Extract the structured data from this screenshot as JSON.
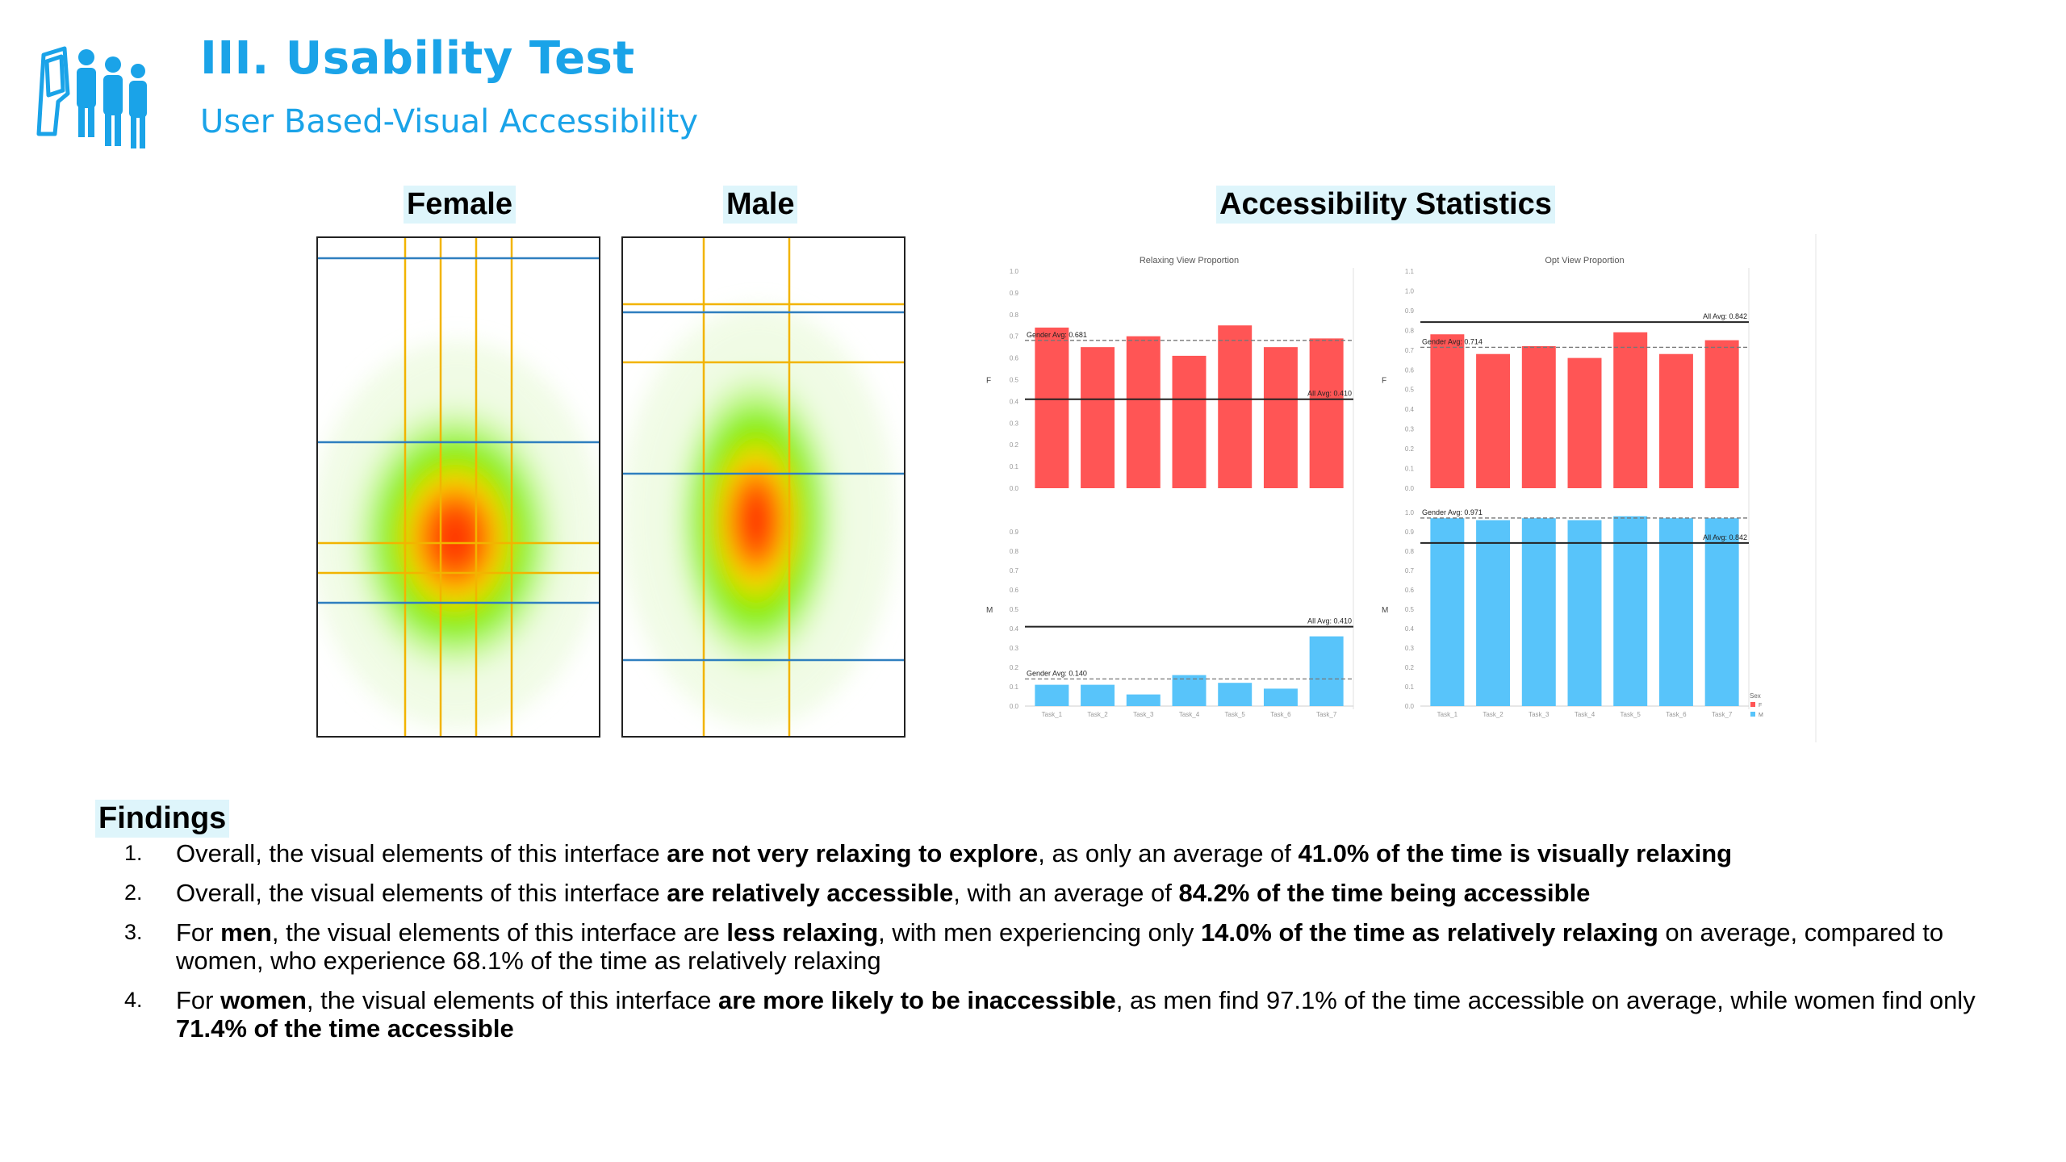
{
  "header": {
    "title": "III. Usability Test",
    "subtitle": "User Based-Visual Accessibility",
    "icon": "kiosk-users-icon"
  },
  "labels": {
    "female": "Female",
    "male": "Male",
    "stats": "Accessibility Statistics",
    "findings": "Findings"
  },
  "colors": {
    "accent": "#1aa3e8",
    "female_bar": "#ff5555",
    "male_bar": "#58c4fa",
    "highlight": "#def5fb"
  },
  "chart_data": [
    {
      "type": "bar",
      "title": "Relaxing View Proportion",
      "categories": [
        "Task_1",
        "Task_2",
        "Task_3",
        "Task_4",
        "Task_5",
        "Task_6",
        "Task_7"
      ],
      "row_labels": [
        "F",
        "M"
      ],
      "series": [
        {
          "name": "F",
          "values": [
            0.74,
            0.65,
            0.7,
            0.61,
            0.75,
            0.65,
            0.69
          ]
        },
        {
          "name": "M",
          "values": [
            0.11,
            0.11,
            0.06,
            0.16,
            0.12,
            0.09,
            0.36
          ]
        }
      ],
      "ylim_f": [
        0,
        1.0
      ],
      "ylim_m": [
        0,
        1.0
      ],
      "yticks_f": [
        "0.0",
        "0.1",
        "0.2",
        "0.3",
        "0.4",
        "0.5",
        "0.6",
        "0.7",
        "0.8",
        "0.9",
        "1.0"
      ],
      "yticks_m": [
        "0.0",
        "0.1",
        "0.2",
        "0.3",
        "0.4",
        "0.5",
        "0.6",
        "0.7",
        "0.8",
        "0.9"
      ],
      "f_gender_avg": 0.681,
      "f_gender_avg_label": "Gender Avg: 0.681",
      "f_all_avg": 0.41,
      "f_all_avg_label": "All Avg: 0.410",
      "m_gender_avg": 0.14,
      "m_gender_avg_label": "Gender Avg: 0.140",
      "m_all_avg": 0.41,
      "m_all_avg_label": "All Avg: 0.410"
    },
    {
      "type": "bar",
      "title": "Opt View Proportion",
      "categories": [
        "Task_1",
        "Task_2",
        "Task_3",
        "Task_4",
        "Task_5",
        "Task_6",
        "Task_7"
      ],
      "row_labels": [
        "F",
        "M"
      ],
      "series": [
        {
          "name": "F",
          "values": [
            0.78,
            0.68,
            0.72,
            0.66,
            0.79,
            0.68,
            0.75
          ]
        },
        {
          "name": "M",
          "values": [
            0.97,
            0.96,
            0.97,
            0.96,
            0.98,
            0.97,
            0.97
          ]
        }
      ],
      "ylim_f": [
        0,
        1.1
      ],
      "ylim_m": [
        0,
        1.0
      ],
      "yticks_f": [
        "0.0",
        "0.1",
        "0.2",
        "0.3",
        "0.4",
        "0.5",
        "0.6",
        "0.7",
        "0.8",
        "0.9",
        "1.0",
        "1.1"
      ],
      "yticks_m": [
        "0.0",
        "0.1",
        "0.2",
        "0.3",
        "0.4",
        "0.5",
        "0.6",
        "0.7",
        "0.8",
        "0.9",
        "1.0"
      ],
      "f_gender_avg": 0.714,
      "f_gender_avg_label": "Gender Avg: 0.714",
      "f_all_avg": 0.842,
      "f_all_avg_label": "All Avg: 0.842",
      "m_gender_avg": 0.971,
      "m_gender_avg_label": "Gender Avg: 0.971",
      "m_all_avg": 0.842,
      "m_all_avg_label": "All Avg: 0.842"
    }
  ],
  "legend": {
    "title": "Sex",
    "items": [
      "F",
      "M"
    ]
  },
  "findings": [
    {
      "num": "1.",
      "parts": [
        {
          "t": "Overall, the visual elements of this interface ",
          "b": false
        },
        {
          "t": "are not very relaxing to explore",
          "b": true
        },
        {
          "t": ", as only an average of ",
          "b": false
        },
        {
          "t": "41.0% of the time is visually relaxing",
          "b": true
        }
      ]
    },
    {
      "num": "2.",
      "parts": [
        {
          "t": "Overall, the visual elements of this interface ",
          "b": false
        },
        {
          "t": "are relatively accessible",
          "b": true
        },
        {
          "t": ", with an average of ",
          "b": false
        },
        {
          "t": "84.2% of the time being accessible",
          "b": true
        }
      ]
    },
    {
      "num": "3.",
      "parts": [
        {
          "t": "For ",
          "b": false
        },
        {
          "t": "men",
          "b": true
        },
        {
          "t": ", the visual elements of this interface are ",
          "b": false
        },
        {
          "t": "less relaxing",
          "b": true
        },
        {
          "t": ", with men experiencing only ",
          "b": false
        },
        {
          "t": "14.0% of the time as relatively relaxing",
          "b": true
        },
        {
          "t": " on average, compared to women, who experience 68.1% of the time as relatively relaxing",
          "b": false
        }
      ]
    },
    {
      "num": "4.",
      "parts": [
        {
          "t": "For ",
          "b": false
        },
        {
          "t": "women",
          "b": true
        },
        {
          "t": ", the visual elements of this interface ",
          "b": false
        },
        {
          "t": "are more likely to be inaccessible",
          "b": true
        },
        {
          "t": ", as men find 97.1% of the time accessible on average, while women find only ",
          "b": false
        },
        {
          "t": "71.4% of the time accessible",
          "b": true
        }
      ]
    }
  ]
}
